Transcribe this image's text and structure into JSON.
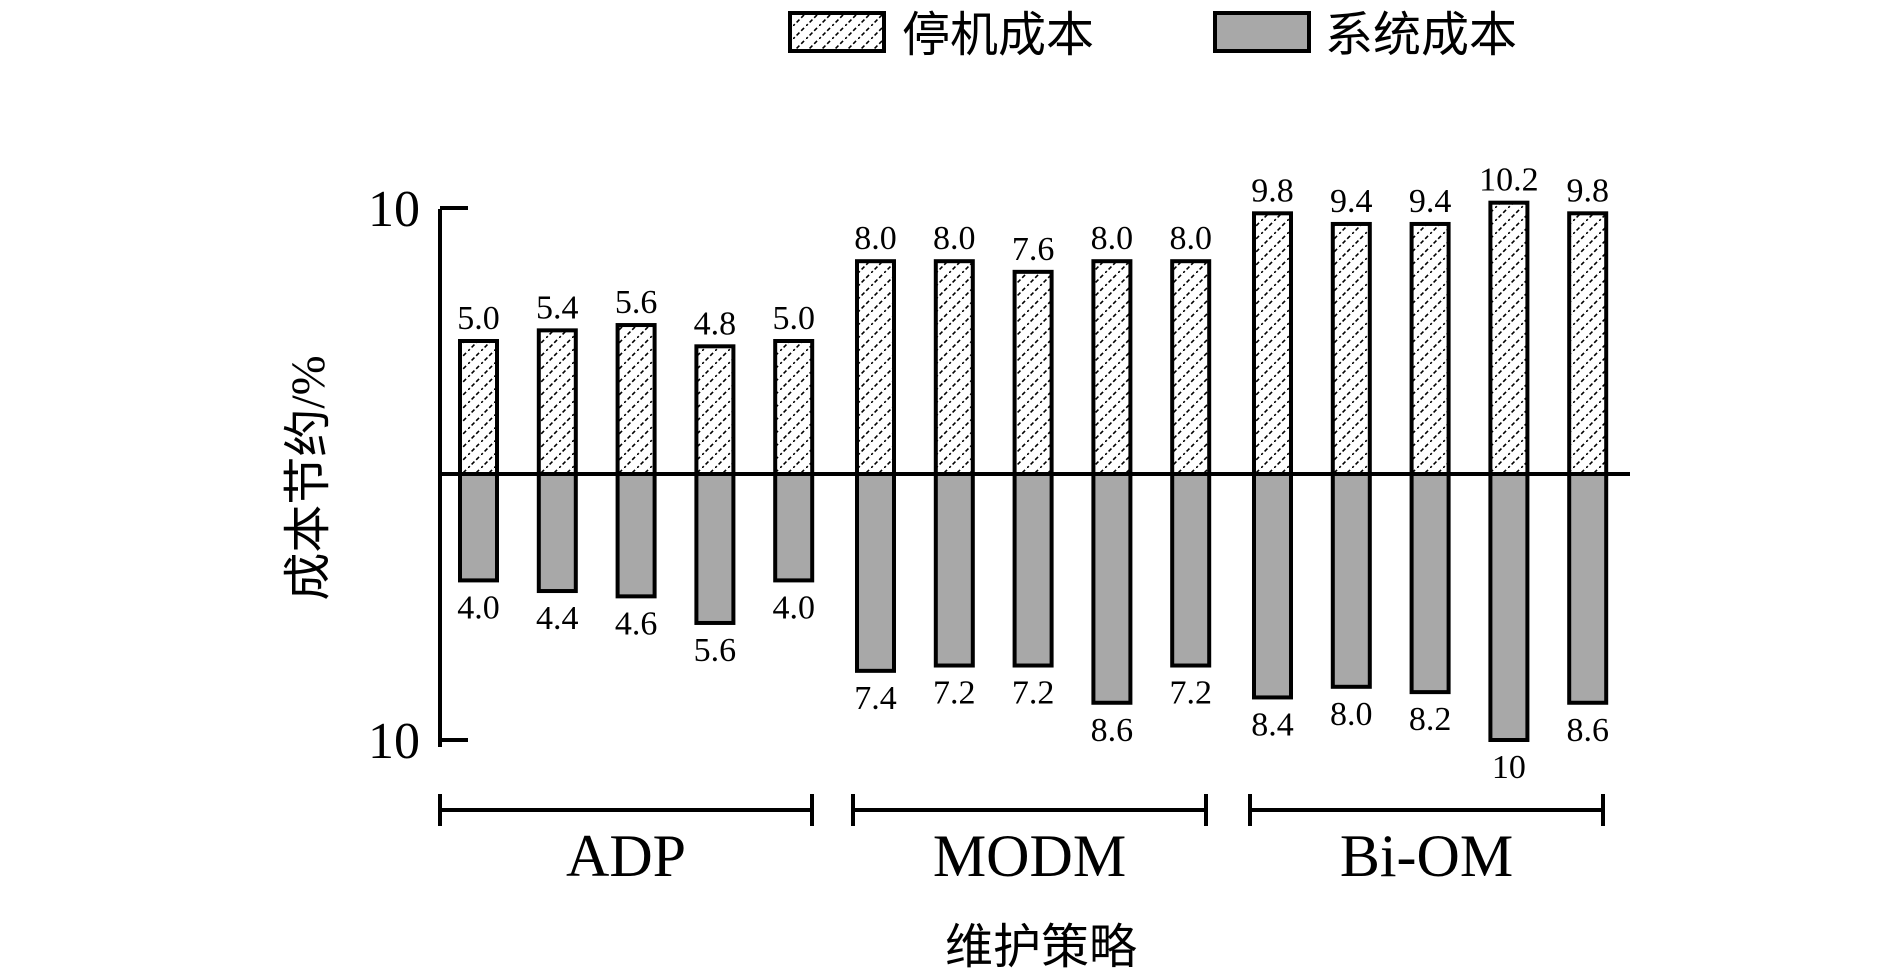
{
  "chart_data": {
    "type": "bar",
    "xlabel": "维护策略",
    "ylabel": "成本节约/%",
    "ylim": [
      -10,
      10
    ],
    "y_ticks": [
      {
        "value": 10,
        "label": "10"
      },
      {
        "value": -10,
        "label": "10"
      }
    ],
    "groups": [
      {
        "name": "ADP",
        "bar_count": 5
      },
      {
        "name": "MODM",
        "bar_count": 5
      },
      {
        "name": "Bi-OM",
        "bar_count": 5
      }
    ],
    "legend_position": "top-right",
    "series": [
      {
        "name": "停机成本",
        "pattern": "hatch",
        "direction": "up",
        "values": [
          5.0,
          5.4,
          5.6,
          4.8,
          5.0,
          8.0,
          8.0,
          7.6,
          8.0,
          8.0,
          9.8,
          9.4,
          9.4,
          10.2,
          9.8
        ],
        "labels": [
          "5.0",
          "5.4",
          "5.6",
          "4.8",
          "5.0",
          "8.0",
          "8.0",
          "7.6",
          "8.0",
          "8.0",
          "9.8",
          "9.4",
          "9.4",
          "10.2",
          "9.8"
        ]
      },
      {
        "name": "系统成本",
        "pattern": "solid",
        "color": "#a8a8a8",
        "direction": "down",
        "values": [
          4.0,
          4.4,
          4.6,
          5.6,
          4.0,
          7.4,
          7.2,
          7.2,
          8.6,
          7.2,
          8.4,
          8.0,
          8.2,
          10,
          8.6
        ],
        "labels": [
          "4.0",
          "4.4",
          "4.6",
          "5.6",
          "4.0",
          "7.4",
          "7.2",
          "7.2",
          "8.6",
          "7.2",
          "8.4",
          "8.0",
          "8.2",
          "10",
          "8.6"
        ]
      }
    ]
  }
}
